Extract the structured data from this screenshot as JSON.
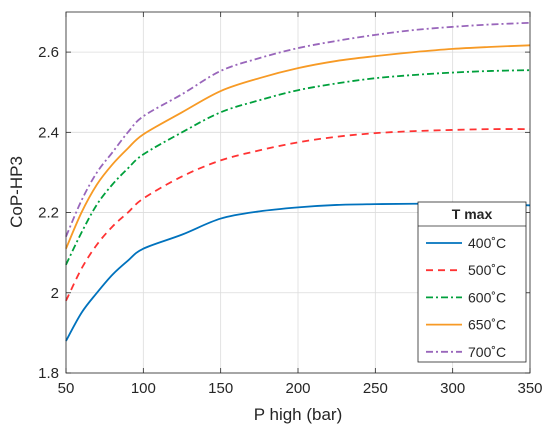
{
  "chart_data": {
    "type": "line",
    "title": "",
    "xlabel": "P high (bar)",
    "ylabel": "CoP-HP3",
    "xlim": [
      50,
      350
    ],
    "ylim": [
      1.8,
      2.7
    ],
    "xticks": [
      50,
      100,
      150,
      200,
      250,
      300,
      350
    ],
    "yticks": [
      1.8,
      2.0,
      2.2,
      2.4,
      2.6
    ],
    "xtick_labels": [
      "50",
      "100",
      "150",
      "200",
      "250",
      "300",
      "350"
    ],
    "ytick_labels": [
      "1.8",
      "2",
      "2.2",
      "2.4",
      "2.6"
    ],
    "grid": true,
    "legend": {
      "title": "T max",
      "placement": "lower-right"
    },
    "series": [
      {
        "name": "400˚C",
        "color": "#0072BD",
        "dash": "solid",
        "x": [
          50,
          60,
          70,
          80,
          90,
          100,
          125,
          150,
          175,
          200,
          225,
          250,
          275,
          300,
          325,
          350
        ],
        "y": [
          1.88,
          1.95,
          2.0,
          2.045,
          2.08,
          2.11,
          2.145,
          2.185,
          2.203,
          2.213,
          2.219,
          2.221,
          2.222,
          2.222,
          2.221,
          2.218
        ]
      },
      {
        "name": "500˚C",
        "color": "#FF3333",
        "dash": "dashed",
        "x": [
          50,
          60,
          70,
          80,
          90,
          100,
          125,
          150,
          175,
          200,
          225,
          250,
          275,
          300,
          325,
          350
        ],
        "y": [
          1.98,
          2.06,
          2.12,
          2.165,
          2.2,
          2.235,
          2.29,
          2.33,
          2.355,
          2.375,
          2.389,
          2.398,
          2.403,
          2.406,
          2.408,
          2.408
        ]
      },
      {
        "name": "600˚C",
        "color": "#00A03C",
        "dash": "dashdot",
        "x": [
          50,
          60,
          70,
          80,
          90,
          100,
          125,
          150,
          175,
          200,
          225,
          250,
          275,
          300,
          325,
          350
        ],
        "y": [
          2.07,
          2.15,
          2.22,
          2.27,
          2.31,
          2.345,
          2.4,
          2.45,
          2.48,
          2.505,
          2.522,
          2.535,
          2.543,
          2.549,
          2.553,
          2.555
        ]
      },
      {
        "name": "650˚C",
        "color": "#F79A25",
        "dash": "solid",
        "x": [
          50,
          60,
          70,
          80,
          90,
          100,
          125,
          150,
          175,
          200,
          225,
          250,
          275,
          300,
          325,
          350
        ],
        "y": [
          2.11,
          2.2,
          2.27,
          2.32,
          2.36,
          2.395,
          2.45,
          2.503,
          2.535,
          2.56,
          2.578,
          2.59,
          2.6,
          2.608,
          2.613,
          2.617
        ]
      },
      {
        "name": "700˚C",
        "color": "#9966BB",
        "dash": "dashdot",
        "x": [
          50,
          60,
          70,
          80,
          90,
          100,
          125,
          150,
          175,
          200,
          225,
          250,
          275,
          300,
          325,
          350
        ],
        "y": [
          2.14,
          2.23,
          2.3,
          2.35,
          2.4,
          2.44,
          2.495,
          2.553,
          2.585,
          2.61,
          2.628,
          2.643,
          2.655,
          2.663,
          2.669,
          2.673
        ]
      }
    ]
  }
}
